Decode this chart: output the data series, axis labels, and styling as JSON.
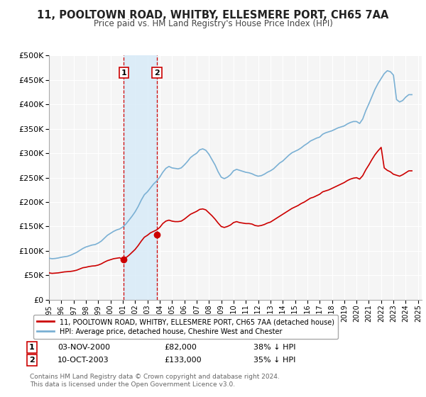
{
  "title": "11, POOLTOWN ROAD, WHITBY, ELLESMERE PORT, CH65 7AA",
  "subtitle": "Price paid vs. HM Land Registry's House Price Index (HPI)",
  "ylim": [
    0,
    500000
  ],
  "yticks": [
    0,
    50000,
    100000,
    150000,
    200000,
    250000,
    300000,
    350000,
    400000,
    450000,
    500000
  ],
  "background_color": "#ffffff",
  "plot_bg_color": "#f5f5f5",
  "grid_color": "#ffffff",
  "legend_label_red": "11, POOLTOWN ROAD, WHITBY, ELLESMERE PORT, CH65 7AA (detached house)",
  "legend_label_blue": "HPI: Average price, detached house, Cheshire West and Chester",
  "sale1_date": "03-NOV-2000",
  "sale1_price": "£82,000",
  "sale1_hpi": "38% ↓ HPI",
  "sale1_year": 2001.08,
  "sale1_value": 82000,
  "sale2_date": "10-OCT-2003",
  "sale2_price": "£133,000",
  "sale2_hpi": "35% ↓ HPI",
  "sale2_year": 2003.78,
  "sale2_value": 133000,
  "footnote1": "Contains HM Land Registry data © Crown copyright and database right 2024.",
  "footnote2": "This data is licensed under the Open Government Licence v3.0.",
  "red_color": "#cc0000",
  "blue_color": "#7ab0d4",
  "shade_color": "#d6eaf8",
  "hpi_years": [
    1995.0,
    1995.25,
    1995.5,
    1995.75,
    1996.0,
    1996.25,
    1996.5,
    1996.75,
    1997.0,
    1997.25,
    1997.5,
    1997.75,
    1998.0,
    1998.25,
    1998.5,
    1998.75,
    1999.0,
    1999.25,
    1999.5,
    1999.75,
    2000.0,
    2000.25,
    2000.5,
    2000.75,
    2001.0,
    2001.25,
    2001.5,
    2001.75,
    2002.0,
    2002.25,
    2002.5,
    2002.75,
    2003.0,
    2003.25,
    2003.5,
    2003.75,
    2004.0,
    2004.25,
    2004.5,
    2004.75,
    2005.0,
    2005.25,
    2005.5,
    2005.75,
    2006.0,
    2006.25,
    2006.5,
    2006.75,
    2007.0,
    2007.25,
    2007.5,
    2007.75,
    2008.0,
    2008.25,
    2008.5,
    2008.75,
    2009.0,
    2009.25,
    2009.5,
    2009.75,
    2010.0,
    2010.25,
    2010.5,
    2010.75,
    2011.0,
    2011.25,
    2011.5,
    2011.75,
    2012.0,
    2012.25,
    2012.5,
    2012.75,
    2013.0,
    2013.25,
    2013.5,
    2013.75,
    2014.0,
    2014.25,
    2014.5,
    2014.75,
    2015.0,
    2015.25,
    2015.5,
    2015.75,
    2016.0,
    2016.25,
    2016.5,
    2016.75,
    2017.0,
    2017.25,
    2017.5,
    2017.75,
    2018.0,
    2018.25,
    2018.5,
    2018.75,
    2019.0,
    2019.25,
    2019.5,
    2019.75,
    2020.0,
    2020.25,
    2020.5,
    2020.75,
    2021.0,
    2021.25,
    2021.5,
    2021.75,
    2022.0,
    2022.25,
    2022.5,
    2022.75,
    2023.0,
    2023.25,
    2023.5,
    2023.75,
    2024.0,
    2024.25,
    2024.5
  ],
  "hpi_values": [
    85000,
    84000,
    84500,
    85500,
    87000,
    88000,
    89000,
    91000,
    94000,
    97000,
    101000,
    105000,
    108000,
    110000,
    112000,
    113000,
    116000,
    120000,
    126000,
    132000,
    136000,
    140000,
    143000,
    145000,
    149000,
    155000,
    163000,
    171000,
    180000,
    191000,
    204000,
    215000,
    221000,
    229000,
    237000,
    243000,
    251000,
    261000,
    269000,
    273000,
    270000,
    269000,
    268000,
    270000,
    276000,
    283000,
    291000,
    296000,
    300000,
    307000,
    309000,
    306000,
    298000,
    287000,
    276000,
    262000,
    251000,
    248000,
    251000,
    256000,
    264000,
    267000,
    265000,
    263000,
    261000,
    260000,
    258000,
    255000,
    253000,
    254000,
    257000,
    261000,
    264000,
    268000,
    274000,
    280000,
    284000,
    290000,
    296000,
    301000,
    304000,
    307000,
    311000,
    316000,
    320000,
    325000,
    328000,
    331000,
    333000,
    339000,
    342000,
    344000,
    346000,
    349000,
    352000,
    354000,
    356000,
    360000,
    363000,
    365000,
    365000,
    361000,
    370000,
    387000,
    401000,
    416000,
    431000,
    443000,
    453000,
    463000,
    469000,
    467000,
    460000,
    410000,
    405000,
    408000,
    415000,
    420000,
    420000
  ],
  "red_years": [
    1995.0,
    1995.25,
    1995.5,
    1995.75,
    1996.0,
    1996.25,
    1996.5,
    1996.75,
    1997.0,
    1997.25,
    1997.5,
    1997.75,
    1998.0,
    1998.25,
    1998.5,
    1998.75,
    1999.0,
    1999.25,
    1999.5,
    1999.75,
    2000.0,
    2000.25,
    2000.5,
    2000.75,
    2001.0,
    2001.25,
    2001.5,
    2001.75,
    2002.0,
    2002.25,
    2002.5,
    2002.75,
    2003.0,
    2003.25,
    2003.5,
    2003.75,
    2004.0,
    2004.25,
    2004.5,
    2004.75,
    2005.0,
    2005.25,
    2005.5,
    2005.75,
    2006.0,
    2006.25,
    2006.5,
    2006.75,
    2007.0,
    2007.25,
    2007.5,
    2007.75,
    2008.0,
    2008.25,
    2008.5,
    2008.75,
    2009.0,
    2009.25,
    2009.5,
    2009.75,
    2010.0,
    2010.25,
    2010.5,
    2010.75,
    2011.0,
    2011.25,
    2011.5,
    2011.75,
    2012.0,
    2012.25,
    2012.5,
    2012.75,
    2013.0,
    2013.25,
    2013.5,
    2013.75,
    2014.0,
    2014.25,
    2014.5,
    2014.75,
    2015.0,
    2015.25,
    2015.5,
    2015.75,
    2016.0,
    2016.25,
    2016.5,
    2016.75,
    2017.0,
    2017.25,
    2017.5,
    2017.75,
    2018.0,
    2018.25,
    2018.5,
    2018.75,
    2019.0,
    2019.25,
    2019.5,
    2019.75,
    2020.0,
    2020.25,
    2020.5,
    2020.75,
    2021.0,
    2021.25,
    2021.5,
    2021.75,
    2022.0,
    2022.25,
    2022.5,
    2022.75,
    2023.0,
    2023.25,
    2023.5,
    2023.75,
    2024.0,
    2024.25,
    2024.5
  ],
  "red_values": [
    55000,
    54000,
    54500,
    55000,
    56000,
    57000,
    57500,
    58000,
    59000,
    60500,
    63000,
    65500,
    66500,
    68000,
    69000,
    69500,
    71000,
    73500,
    77000,
    80000,
    82000,
    84000,
    85000,
    86000,
    82000,
    86000,
    91000,
    97000,
    103000,
    111000,
    120000,
    128000,
    132000,
    137000,
    140000,
    143000,
    148000,
    156000,
    161000,
    163000,
    161000,
    160000,
    160000,
    161000,
    165000,
    170000,
    175000,
    178000,
    181000,
    185000,
    186000,
    184000,
    178000,
    172000,
    165000,
    157000,
    150000,
    148000,
    150000,
    153000,
    158000,
    160000,
    158000,
    157000,
    156000,
    156000,
    155000,
    152000,
    151000,
    152000,
    154000,
    157000,
    159000,
    163000,
    167000,
    171000,
    175000,
    179000,
    183000,
    187000,
    190000,
    193000,
    197000,
    200000,
    204000,
    208000,
    210000,
    213000,
    216000,
    221000,
    223000,
    225000,
    228000,
    231000,
    234000,
    237000,
    240000,
    244000,
    247000,
    249000,
    250000,
    247000,
    254000,
    266000,
    276000,
    287000,
    297000,
    305000,
    312000,
    270000,
    265000,
    262000,
    257000,
    255000,
    253000,
    256000,
    260000,
    264000,
    264000
  ]
}
